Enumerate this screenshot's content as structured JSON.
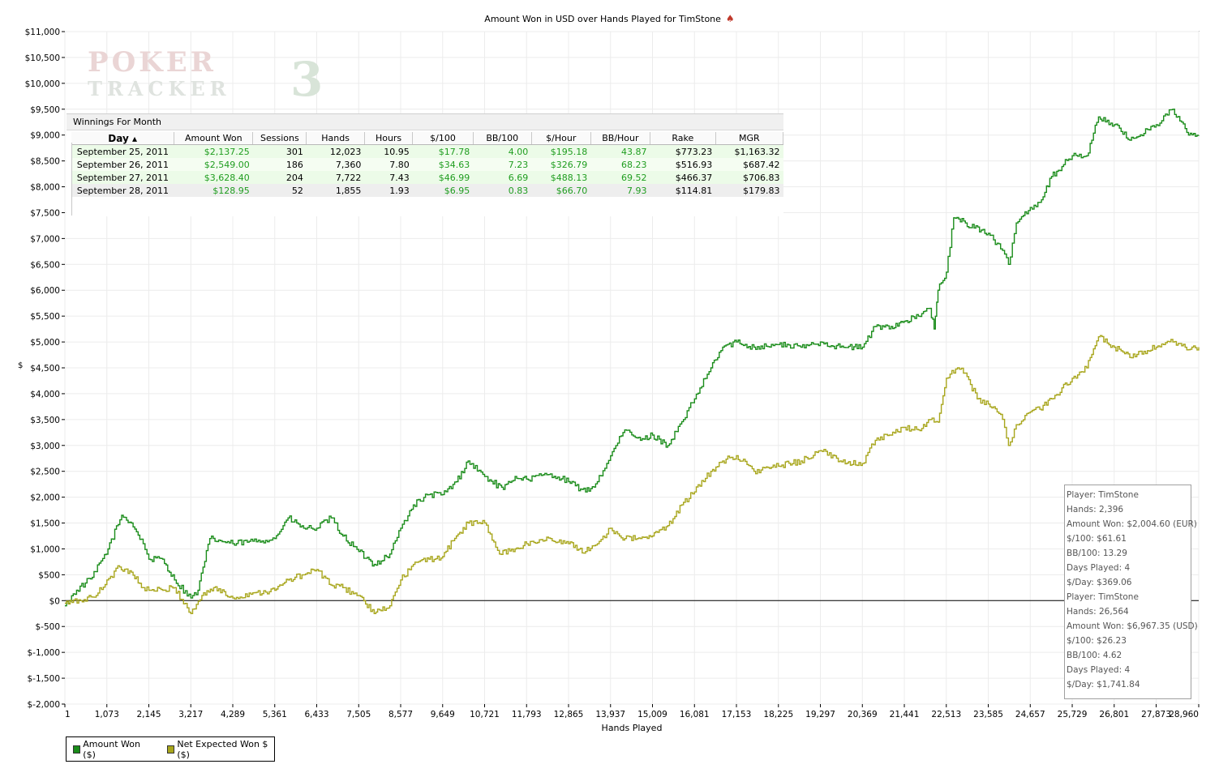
{
  "chart_data": {
    "type": "line",
    "title": "Amount Won in USD over Hands Played for TimStone",
    "xlabel": "Hands Played",
    "ylabel": "$",
    "xlim": [
      1,
      28960
    ],
    "ylim": [
      -2000,
      11000
    ],
    "x_ticks": [
      "1",
      "1,073",
      "2,145",
      "3,217",
      "4,289",
      "5,361",
      "6,433",
      "7,505",
      "8,577",
      "9,649",
      "10,721",
      "11,793",
      "12,865",
      "13,937",
      "15,009",
      "16,081",
      "17,153",
      "18,225",
      "19,297",
      "20,369",
      "21,441",
      "22,513",
      "23,585",
      "24,657",
      "25,729",
      "26,801",
      "27,873",
      "28,960"
    ],
    "y_ticks": [
      "$11,000",
      "$10,500",
      "$10,000",
      "$9,500",
      "$9,000",
      "$8,500",
      "$8,000",
      "$7,500",
      "$7,000",
      "$6,500",
      "$6,000",
      "$5,500",
      "$5,000",
      "$4,500",
      "$4,000",
      "$3,500",
      "$3,000",
      "$2,500",
      "$2,000",
      "$1,500",
      "$1,000",
      "$500",
      "$0",
      "$-500",
      "$-1,000",
      "$-1,500",
      "$-2,000"
    ],
    "grid": true,
    "legend_position": "bottom-left",
    "series": [
      {
        "name": "Amount Won ($)",
        "color": "#1a8c1a",
        "points": [
          [
            1,
            -100
          ],
          [
            300,
            200
          ],
          [
            700,
            450
          ],
          [
            1100,
            1000
          ],
          [
            1450,
            1650
          ],
          [
            1700,
            1500
          ],
          [
            2000,
            1100
          ],
          [
            2145,
            800
          ],
          [
            2500,
            800
          ],
          [
            2800,
            400
          ],
          [
            3217,
            50
          ],
          [
            3400,
            200
          ],
          [
            3700,
            1200
          ],
          [
            4289,
            1100
          ],
          [
            4800,
            1150
          ],
          [
            5361,
            1200
          ],
          [
            5700,
            1600
          ],
          [
            6100,
            1400
          ],
          [
            6433,
            1400
          ],
          [
            6800,
            1600
          ],
          [
            7100,
            1250
          ],
          [
            7505,
            950
          ],
          [
            7900,
            700
          ],
          [
            8300,
            900
          ],
          [
            8577,
            1400
          ],
          [
            8900,
            1850
          ],
          [
            9300,
            2050
          ],
          [
            9649,
            2050
          ],
          [
            10000,
            2300
          ],
          [
            10300,
            2700
          ],
          [
            10721,
            2400
          ],
          [
            11200,
            2150
          ],
          [
            11500,
            2400
          ],
          [
            11793,
            2350
          ],
          [
            12400,
            2450
          ],
          [
            12865,
            2300
          ],
          [
            13300,
            2100
          ],
          [
            13600,
            2300
          ],
          [
            13937,
            2800
          ],
          [
            14300,
            3300
          ],
          [
            14700,
            3100
          ],
          [
            15009,
            3200
          ],
          [
            15400,
            3000
          ],
          [
            15800,
            3500
          ],
          [
            16081,
            3900
          ],
          [
            16500,
            4500
          ],
          [
            16800,
            4900
          ],
          [
            17153,
            5000
          ],
          [
            17600,
            4900
          ],
          [
            18225,
            4950
          ],
          [
            18800,
            4900
          ],
          [
            19297,
            5000
          ],
          [
            19800,
            4900
          ],
          [
            20369,
            4900
          ],
          [
            20700,
            5300
          ],
          [
            21100,
            5300
          ],
          [
            21441,
            5400
          ],
          [
            21800,
            5500
          ],
          [
            22100,
            5650
          ],
          [
            22200,
            5250
          ],
          [
            22300,
            6000
          ],
          [
            22513,
            6350
          ],
          [
            22700,
            7400
          ],
          [
            23000,
            7300
          ],
          [
            23585,
            7100
          ],
          [
            23900,
            6800
          ],
          [
            24100,
            6500
          ],
          [
            24300,
            7300
          ],
          [
            24657,
            7600
          ],
          [
            24900,
            7700
          ],
          [
            25200,
            8200
          ],
          [
            25729,
            8600
          ],
          [
            26100,
            8600
          ],
          [
            26400,
            9350
          ],
          [
            26801,
            9200
          ],
          [
            27200,
            8900
          ],
          [
            27873,
            9200
          ],
          [
            28300,
            9500
          ],
          [
            28700,
            9000
          ],
          [
            28960,
            9000
          ]
        ]
      },
      {
        "name": "Net Expected Won $ ($)",
        "color": "#a8a61c",
        "points": [
          [
            1,
            -50
          ],
          [
            400,
            0
          ],
          [
            800,
            100
          ],
          [
            1073,
            400
          ],
          [
            1400,
            650
          ],
          [
            1700,
            550
          ],
          [
            2000,
            250
          ],
          [
            2145,
            200
          ],
          [
            2500,
            200
          ],
          [
            2800,
            250
          ],
          [
            3217,
            -250
          ],
          [
            3500,
            100
          ],
          [
            3800,
            250
          ],
          [
            4289,
            50
          ],
          [
            4800,
            150
          ],
          [
            5361,
            200
          ],
          [
            5700,
            400
          ],
          [
            6100,
            500
          ],
          [
            6433,
            600
          ],
          [
            6800,
            300
          ],
          [
            7100,
            250
          ],
          [
            7505,
            100
          ],
          [
            7900,
            -250
          ],
          [
            8300,
            -100
          ],
          [
            8577,
            400
          ],
          [
            8900,
            700
          ],
          [
            9300,
            800
          ],
          [
            9649,
            850
          ],
          [
            10000,
            1250
          ],
          [
            10300,
            1500
          ],
          [
            10721,
            1500
          ],
          [
            11100,
            900
          ],
          [
            11500,
            1000
          ],
          [
            11793,
            1100
          ],
          [
            12400,
            1200
          ],
          [
            12865,
            1100
          ],
          [
            13300,
            950
          ],
          [
            13600,
            1100
          ],
          [
            13937,
            1400
          ],
          [
            14300,
            1200
          ],
          [
            14700,
            1200
          ],
          [
            15009,
            1250
          ],
          [
            15400,
            1450
          ],
          [
            15800,
            1900
          ],
          [
            16081,
            2100
          ],
          [
            16500,
            2500
          ],
          [
            16800,
            2700
          ],
          [
            17153,
            2800
          ],
          [
            17600,
            2500
          ],
          [
            18225,
            2600
          ],
          [
            18800,
            2700
          ],
          [
            19297,
            2900
          ],
          [
            19800,
            2700
          ],
          [
            20369,
            2650
          ],
          [
            20700,
            3100
          ],
          [
            21100,
            3200
          ],
          [
            21441,
            3350
          ],
          [
            21800,
            3300
          ],
          [
            22100,
            3500
          ],
          [
            22300,
            3450
          ],
          [
            22513,
            4300
          ],
          [
            22800,
            4500
          ],
          [
            23000,
            4400
          ],
          [
            23300,
            3900
          ],
          [
            23585,
            3800
          ],
          [
            23900,
            3600
          ],
          [
            24100,
            3000
          ],
          [
            24300,
            3400
          ],
          [
            24657,
            3650
          ],
          [
            24900,
            3700
          ],
          [
            25200,
            3900
          ],
          [
            25729,
            4300
          ],
          [
            26100,
            4500
          ],
          [
            26400,
            5100
          ],
          [
            26801,
            4900
          ],
          [
            27200,
            4700
          ],
          [
            27873,
            4900
          ],
          [
            28300,
            5000
          ],
          [
            28700,
            4850
          ],
          [
            28960,
            4900
          ]
        ]
      }
    ]
  },
  "watermark": {
    "line1": "POKER",
    "line2": "TRACKER",
    "mark": "3"
  },
  "winnings": {
    "title": "Winnings For Month",
    "headers": [
      "Day",
      "Amount Won",
      "Sessions",
      "Hands",
      "Hours",
      "$/100",
      "BB/100",
      "$/Hour",
      "BB/Hour",
      "Rake",
      "MGR"
    ],
    "rows": [
      [
        "September 25, 2011",
        "$2,137.25",
        "301",
        "12,023",
        "10.95",
        "$17.78",
        "4.00",
        "$195.18",
        "43.87",
        "$773.23",
        "$1,163.32"
      ],
      [
        "September 26, 2011",
        "$2,549.00",
        "186",
        "7,360",
        "7.80",
        "$34.63",
        "7.23",
        "$326.79",
        "68.23",
        "$516.93",
        "$687.42"
      ],
      [
        "September 27, 2011",
        "$3,628.40",
        "204",
        "7,722",
        "7.43",
        "$46.99",
        "6.69",
        "$488.13",
        "69.52",
        "$466.37",
        "$706.83"
      ],
      [
        "September 28, 2011",
        "$128.95",
        "52",
        "1,855",
        "1.93",
        "$6.95",
        "0.83",
        "$66.70",
        "7.93",
        "$114.81",
        "$179.83"
      ]
    ]
  },
  "stats": [
    "Player: TimStone",
    "Hands: 2,396",
    "Amount Won: $2,004.60 (EUR)",
    "$/100: $61.61",
    "BB/100: 13.29",
    "Days Played: 4",
    "$/Day: $369.06",
    "Player: TimStone",
    "Hands: 26,564",
    "Amount Won: $6,967.35 (USD)",
    "$/100: $26.23",
    "BB/100: 4.62",
    "Days Played: 4",
    "$/Day: $1,741.84"
  ],
  "legend": [
    {
      "label": "Amount Won ($)",
      "color": "#1a8c1a"
    },
    {
      "label": "Net Expected Won $ ($)",
      "color": "#a8a61c"
    }
  ]
}
